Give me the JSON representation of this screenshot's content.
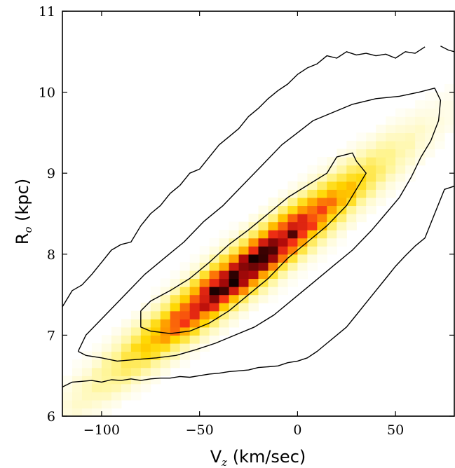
{
  "chart_data": {
    "type": "heatmap",
    "title": "",
    "xlabel": {
      "main": "V",
      "sub": "z",
      "unit": " (km/sec)"
    },
    "ylabel": {
      "main": "R",
      "sub": "o",
      "unit": " (kpc)"
    },
    "xlim": [
      -120,
      80
    ],
    "ylim": [
      6,
      11
    ],
    "xticks": [
      -100,
      -50,
      0,
      50
    ],
    "xtick_labels": [
      "−100",
      "−50",
      "0",
      "50"
    ],
    "yticks": [
      6,
      7,
      8,
      9,
      10,
      11
    ],
    "ytick_labels": [
      "6",
      "7",
      "8",
      "9",
      "10",
      "11"
    ],
    "grid": false,
    "colormap": "hot_r",
    "density_model": {
      "center": [
        -25,
        7.85
      ],
      "slope_kpc_per_kms": 0.0185,
      "sigma_along_kms": 40,
      "sigma_across_kpc": 0.22,
      "bin_width_kms": 5,
      "bin_height_kpc": 0.1
    },
    "contours": [
      {
        "level": "inner",
        "points": [
          [
            -80,
            7.3
          ],
          [
            -75,
            7.42
          ],
          [
            -65,
            7.55
          ],
          [
            -55,
            7.7
          ],
          [
            -45,
            7.9
          ],
          [
            -35,
            8.12
          ],
          [
            -25,
            8.3
          ],
          [
            -15,
            8.5
          ],
          [
            -5,
            8.7
          ],
          [
            5,
            8.85
          ],
          [
            15,
            9.0
          ],
          [
            20,
            9.2
          ],
          [
            28,
            9.25
          ],
          [
            30,
            9.15
          ],
          [
            35,
            9.0
          ],
          [
            25,
            8.6
          ],
          [
            15,
            8.35
          ],
          [
            5,
            8.15
          ],
          [
            -5,
            7.95
          ],
          [
            -15,
            7.7
          ],
          [
            -25,
            7.5
          ],
          [
            -35,
            7.3
          ],
          [
            -45,
            7.15
          ],
          [
            -55,
            7.05
          ],
          [
            -65,
            7.02
          ],
          [
            -75,
            7.05
          ],
          [
            -80,
            7.1
          ],
          [
            -80,
            7.3
          ]
        ]
      },
      {
        "level": "middle",
        "points": [
          [
            -112,
            6.8
          ],
          [
            -108,
            7.0
          ],
          [
            -98,
            7.25
          ],
          [
            -88,
            7.5
          ],
          [
            -78,
            7.75
          ],
          [
            -68,
            7.95
          ],
          [
            -58,
            8.15
          ],
          [
            -48,
            8.4
          ],
          [
            -38,
            8.6
          ],
          [
            -28,
            8.85
          ],
          [
            -18,
            9.1
          ],
          [
            -8,
            9.35
          ],
          [
            0,
            9.5
          ],
          [
            8,
            9.65
          ],
          [
            18,
            9.75
          ],
          [
            28,
            9.85
          ],
          [
            40,
            9.92
          ],
          [
            52,
            9.95
          ],
          [
            62,
            10.0
          ],
          [
            70,
            10.05
          ],
          [
            73,
            9.9
          ],
          [
            72,
            9.65
          ],
          [
            68,
            9.4
          ],
          [
            63,
            9.2
          ],
          [
            58,
            8.95
          ],
          [
            52,
            8.7
          ],
          [
            45,
            8.5
          ],
          [
            38,
            8.3
          ],
          [
            28,
            8.05
          ],
          [
            18,
            7.85
          ],
          [
            8,
            7.65
          ],
          [
            -2,
            7.45
          ],
          [
            -12,
            7.25
          ],
          [
            -22,
            7.1
          ],
          [
            -32,
            7.0
          ],
          [
            -42,
            6.9
          ],
          [
            -52,
            6.82
          ],
          [
            -62,
            6.75
          ],
          [
            -72,
            6.72
          ],
          [
            -82,
            6.7
          ],
          [
            -92,
            6.68
          ],
          [
            -100,
            6.72
          ],
          [
            -108,
            6.75
          ],
          [
            -112,
            6.8
          ]
        ]
      },
      {
        "level": "outer-left",
        "points": [
          [
            -120,
            7.35
          ],
          [
            -115,
            7.55
          ],
          [
            -110,
            7.62
          ],
          [
            -105,
            7.75
          ],
          [
            -100,
            7.9
          ],
          [
            -95,
            8.05
          ],
          [
            -90,
            8.12
          ],
          [
            -85,
            8.15
          ],
          [
            -80,
            8.35
          ],
          [
            -75,
            8.5
          ],
          [
            -70,
            8.6
          ],
          [
            -65,
            8.75
          ],
          [
            -60,
            8.85
          ],
          [
            -55,
            9.0
          ],
          [
            -50,
            9.05
          ],
          [
            -45,
            9.2
          ],
          [
            -40,
            9.35
          ],
          [
            -35,
            9.45
          ],
          [
            -30,
            9.55
          ],
          [
            -25,
            9.7
          ],
          [
            -20,
            9.8
          ],
          [
            -15,
            9.92
          ],
          [
            -10,
            10.02
          ],
          [
            -5,
            10.1
          ],
          [
            0,
            10.22
          ],
          [
            5,
            10.3
          ],
          [
            10,
            10.35
          ],
          [
            15,
            10.45
          ],
          [
            20,
            10.42
          ],
          [
            25,
            10.5
          ],
          [
            30,
            10.46
          ],
          [
            35,
            10.48
          ],
          [
            40,
            10.45
          ],
          [
            45,
            10.47
          ],
          [
            50,
            10.42
          ],
          [
            55,
            10.5
          ],
          [
            60,
            10.48
          ],
          [
            65,
            10.56
          ]
        ]
      },
      {
        "level": "outer-bottom",
        "points": [
          [
            -120,
            6.36
          ],
          [
            -115,
            6.42
          ],
          [
            -110,
            6.43
          ],
          [
            -105,
            6.44
          ],
          [
            -100,
            6.42
          ],
          [
            -95,
            6.45
          ],
          [
            -90,
            6.44
          ],
          [
            -85,
            6.46
          ],
          [
            -80,
            6.44
          ],
          [
            -75,
            6.46
          ],
          [
            -70,
            6.47
          ],
          [
            -65,
            6.47
          ],
          [
            -60,
            6.49
          ],
          [
            -55,
            6.48
          ],
          [
            -50,
            6.5
          ],
          [
            -45,
            6.52
          ],
          [
            -40,
            6.53
          ],
          [
            -35,
            6.55
          ],
          [
            -30,
            6.56
          ],
          [
            -25,
            6.57
          ],
          [
            -20,
            6.6
          ],
          [
            -15,
            6.61
          ],
          [
            -10,
            6.62
          ],
          [
            -5,
            6.66
          ],
          [
            0,
            6.68
          ],
          [
            5,
            6.72
          ],
          [
            10,
            6.8
          ],
          [
            15,
            6.9
          ],
          [
            20,
            7.0
          ],
          [
            25,
            7.1
          ],
          [
            30,
            7.25
          ],
          [
            35,
            7.4
          ],
          [
            40,
            7.55
          ],
          [
            45,
            7.7
          ],
          [
            50,
            7.85
          ],
          [
            55,
            7.98
          ],
          [
            60,
            8.1
          ],
          [
            65,
            8.2
          ],
          [
            70,
            8.5
          ],
          [
            75,
            8.8
          ],
          [
            80,
            8.84
          ]
        ]
      },
      {
        "level": "outer-right",
        "points": [
          [
            73,
            10.57
          ],
          [
            77,
            10.52
          ],
          [
            80,
            10.5
          ]
        ]
      }
    ]
  }
}
